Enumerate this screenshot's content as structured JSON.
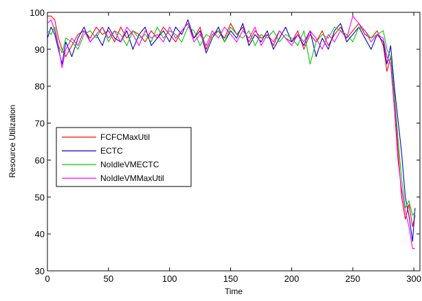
{
  "chart_data": {
    "type": "line",
    "title": "",
    "xlabel": "Time",
    "ylabel": "Resource Utilization",
    "xlim": [
      0,
      305
    ],
    "ylim": [
      30,
      100
    ],
    "xticks": [
      0,
      50,
      100,
      150,
      200,
      250,
      300
    ],
    "yticks": [
      30,
      40,
      50,
      60,
      70,
      80,
      90,
      100
    ],
    "grid": false,
    "legend_position": "center-left",
    "series": [
      {
        "name": "FCFCMaxUtil",
        "color": "#ff0000",
        "x": [
          0,
          3,
          6,
          9,
          12,
          15,
          20,
          25,
          30,
          35,
          40,
          45,
          50,
          55,
          60,
          65,
          70,
          75,
          80,
          85,
          90,
          95,
          100,
          105,
          110,
          115,
          120,
          125,
          130,
          135,
          140,
          145,
          150,
          155,
          160,
          165,
          170,
          175,
          180,
          185,
          190,
          195,
          200,
          205,
          210,
          215,
          220,
          225,
          230,
          235,
          240,
          245,
          250,
          255,
          260,
          265,
          270,
          275,
          278,
          281,
          284,
          287,
          290,
          293,
          296,
          299,
          301
        ],
        "values": [
          99,
          99,
          98,
          93,
          90,
          88,
          91,
          94,
          95,
          93,
          96,
          94,
          95,
          92,
          96,
          93,
          95,
          94,
          92,
          95,
          93,
          96,
          94,
          92,
          95,
          97,
          93,
          96,
          90,
          94,
          95,
          93,
          97,
          94,
          96,
          92,
          95,
          93,
          94,
          91,
          95,
          93,
          92,
          95,
          90,
          94,
          92,
          95,
          91,
          94,
          96,
          93,
          95,
          97,
          94,
          93,
          95,
          91,
          84,
          88,
          77,
          63,
          50,
          44,
          48,
          42,
          45
        ]
      },
      {
        "name": "ECTC",
        "color": "#0000cc",
        "x": [
          0,
          3,
          6,
          9,
          12,
          15,
          20,
          25,
          30,
          35,
          40,
          45,
          50,
          55,
          60,
          65,
          70,
          75,
          80,
          85,
          90,
          95,
          100,
          105,
          110,
          115,
          120,
          125,
          130,
          135,
          140,
          145,
          150,
          155,
          160,
          165,
          170,
          175,
          180,
          185,
          190,
          195,
          200,
          205,
          210,
          215,
          220,
          225,
          230,
          235,
          240,
          245,
          250,
          255,
          260,
          265,
          270,
          275,
          278,
          281,
          284,
          287,
          290,
          293,
          296,
          299,
          301
        ],
        "values": [
          93,
          96,
          94,
          90,
          86,
          92,
          88,
          93,
          96,
          92,
          94,
          91,
          96,
          93,
          92,
          95,
          90,
          94,
          96,
          91,
          93,
          95,
          92,
          96,
          94,
          98,
          93,
          95,
          89,
          93,
          96,
          92,
          95,
          93,
          97,
          91,
          94,
          92,
          95,
          90,
          93,
          96,
          92,
          94,
          91,
          95,
          88,
          93,
          90,
          95,
          97,
          92,
          94,
          96,
          93,
          90,
          94,
          92,
          86,
          91,
          80,
          71,
          62,
          50,
          45,
          38,
          47
        ]
      },
      {
        "name": "NoIdleVMECTC",
        "color": "#00cc00",
        "x": [
          0,
          3,
          6,
          9,
          12,
          15,
          20,
          25,
          30,
          35,
          40,
          45,
          50,
          55,
          60,
          65,
          70,
          75,
          80,
          85,
          90,
          95,
          100,
          105,
          110,
          115,
          120,
          125,
          130,
          135,
          140,
          145,
          150,
          155,
          160,
          165,
          170,
          175,
          180,
          185,
          190,
          195,
          200,
          205,
          210,
          215,
          220,
          225,
          230,
          235,
          240,
          245,
          250,
          255,
          260,
          265,
          270,
          275,
          278,
          281,
          284,
          287,
          290,
          293,
          296,
          299,
          301
        ],
        "values": [
          95,
          94,
          96,
          91,
          89,
          93,
          92,
          90,
          94,
          95,
          93,
          96,
          92,
          95,
          94,
          91,
          95,
          93,
          94,
          92,
          96,
          93,
          95,
          94,
          92,
          96,
          95,
          91,
          94,
          93,
          95,
          92,
          96,
          94,
          93,
          95,
          91,
          94,
          93,
          95,
          92,
          94,
          93,
          91,
          95,
          86,
          92,
          94,
          93,
          96,
          95,
          94,
          92,
          96,
          95,
          93,
          94,
          95,
          90,
          88,
          78,
          66,
          55,
          47,
          49,
          45,
          46
        ]
      },
      {
        "name": "NoIdleVMMaxUtil",
        "color": "#ff00ff",
        "x": [
          0,
          3,
          6,
          9,
          12,
          15,
          20,
          25,
          30,
          35,
          40,
          45,
          50,
          55,
          60,
          65,
          70,
          75,
          80,
          85,
          90,
          95,
          100,
          105,
          110,
          115,
          120,
          125,
          130,
          135,
          140,
          145,
          150,
          155,
          160,
          165,
          170,
          175,
          180,
          185,
          190,
          195,
          200,
          205,
          210,
          215,
          220,
          225,
          230,
          235,
          240,
          245,
          250,
          255,
          260,
          265,
          270,
          275,
          278,
          281,
          284,
          287,
          290,
          293,
          296,
          299,
          301
        ],
        "values": [
          97,
          98,
          95,
          91,
          85,
          90,
          93,
          91,
          95,
          92,
          94,
          96,
          93,
          95,
          92,
          96,
          94,
          91,
          95,
          93,
          94,
          92,
          96,
          93,
          95,
          97,
          92,
          94,
          91,
          95,
          93,
          96,
          94,
          92,
          95,
          93,
          96,
          91,
          94,
          92,
          95,
          93,
          91,
          94,
          92,
          95,
          93,
          90,
          94,
          92,
          95,
          93,
          99,
          97,
          95,
          92,
          94,
          93,
          88,
          86,
          74,
          60,
          52,
          46,
          42,
          36,
          36
        ]
      }
    ]
  }
}
